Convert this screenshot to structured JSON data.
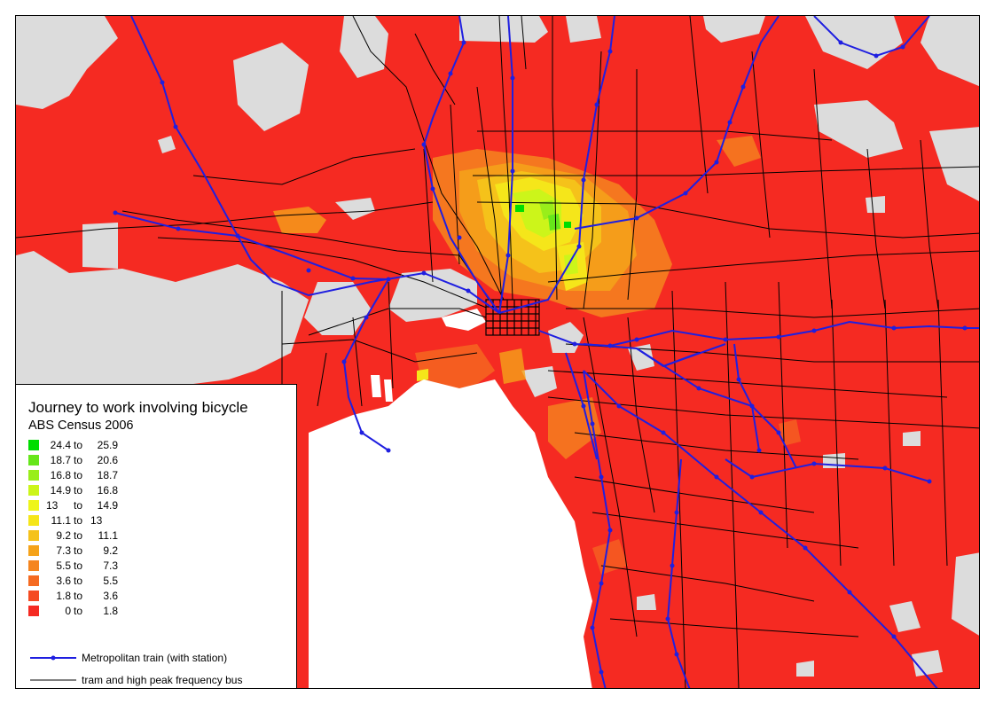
{
  "legend": {
    "title": "Journey to work involving bicycle",
    "subtitle": "ABS Census 2006",
    "classes": [
      {
        "low": "24.4",
        "to": "to",
        "high": "25.9",
        "color": "#00dd00"
      },
      {
        "low": "18.7",
        "to": "to",
        "high": "20.6",
        "color": "#66e61a"
      },
      {
        "low": "16.8",
        "to": "to",
        "high": "18.7",
        "color": "#99ee1a"
      },
      {
        "low": "14.9",
        "to": "to",
        "high": "16.8",
        "color": "#ccf51a"
      },
      {
        "low": "13",
        "to": "to",
        "high": "14.9",
        "color": "#eef51a"
      },
      {
        "low": "11.1",
        "to": "to",
        "high": "13",
        "color": "#f5e61a"
      },
      {
        "low": "9.2",
        "to": "to",
        "high": "11.1",
        "color": "#f5c21a"
      },
      {
        "low": "7.3",
        "to": "to",
        "high": "9.2",
        "color": "#f5a31a"
      },
      {
        "low": "5.5",
        "to": "to",
        "high": "7.3",
        "color": "#f5851f"
      },
      {
        "low": "3.6",
        "to": "to",
        "high": "5.5",
        "color": "#f56a21"
      },
      {
        "low": "1.8",
        "to": "to",
        "high": "3.6",
        "color": "#f54a22"
      },
      {
        "low": "0",
        "to": "to",
        "high": "1.8",
        "color": "#f52a22"
      }
    ],
    "train_label": "Metropolitan train (with station)",
    "tram_label": "tram and high peak frequency bus"
  },
  "colors": {
    "base": "#f52a22",
    "no_data": "#dcdcdc",
    "water": "#ffffff",
    "train": "#1f1fe0",
    "tram": "#000000"
  }
}
